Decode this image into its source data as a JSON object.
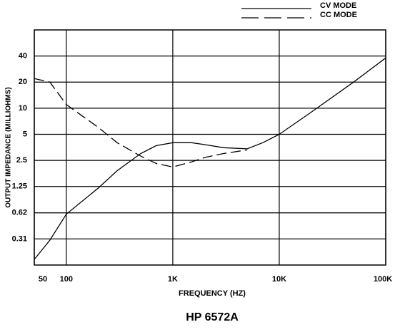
{
  "chart_data": {
    "type": "line",
    "title": "HP 6572A",
    "xlabel": "FREQUENCY (HZ)",
    "ylabel": "OUTPUT IMPEDANCE (MILLIOHMS)",
    "x": [
      50,
      70,
      100,
      200,
      300,
      500,
      700,
      1000,
      1500,
      2000,
      3000,
      5000,
      7000,
      10000,
      20000,
      50000,
      100000
    ],
    "series": [
      {
        "name": "CV MODE",
        "color": "#000000",
        "dash": "solid",
        "values": [
          0.18,
          0.3,
          0.6,
          1.2,
          1.9,
          3.0,
          3.7,
          4.0,
          4.0,
          3.8,
          3.5,
          3.4,
          4.0,
          5,
          9,
          20,
          38
        ]
      },
      {
        "name": "CC MODE",
        "color": "#000000",
        "dash": "dashed",
        "values": [
          22,
          20,
          11,
          6,
          4,
          2.8,
          2.3,
          2.1,
          2.4,
          2.7,
          3.0,
          3.3,
          null,
          null,
          null,
          null,
          null
        ]
      }
    ],
    "xscale": "log",
    "yscale": "log",
    "xlim": [
      50,
      100000
    ],
    "xticks": [
      50,
      100,
      {
        "value": 1000,
        "label": "1K"
      },
      {
        "value": 10000,
        "label": "10K"
      },
      {
        "value": 100000,
        "label": "100K"
      }
    ],
    "ylim": [
      0.155,
      80
    ],
    "yticks": [
      0.31,
      0.62,
      1.25,
      2.5,
      5,
      10,
      20,
      40
    ],
    "grid": true,
    "legend": "top-right"
  }
}
